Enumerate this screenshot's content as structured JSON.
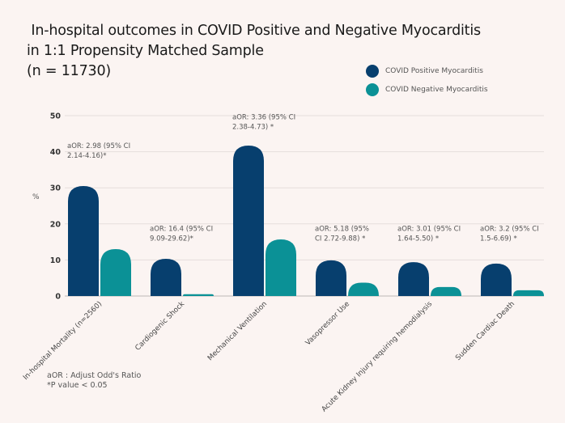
{
  "chart_data": {
    "type": "bar",
    "title": "In-hospital outcomes in COVID Positive and Negative Myocarditis in 1:1 Propensity Matched Sample (n = 11730)",
    "title_lines": [
      " In-hospital outcomes in COVID Positive and Negative Myocarditis",
      "in 1:1 Propensity Matched Sample",
      "(n = 11730)"
    ],
    "xlabel": "",
    "ylabel": "%",
    "ylim": [
      0,
      50
    ],
    "yticks": [
      0,
      10,
      20,
      30,
      40,
      50
    ],
    "grid": true,
    "legend_position": "top-right",
    "categories": [
      "In-hospital Mortality (n=2560)",
      "Cardiogenic Shock",
      "Mechanical Ventilation",
      "Vasopressor Use",
      "Acute Kidney Injury requiring hemodialysis",
      "Sudden Cardiac Death"
    ],
    "series": [
      {
        "name": "COVID Positive Myocarditis",
        "color": "#073f6e",
        "values": [
          30.5,
          10.3,
          41.7,
          9.9,
          9.4,
          9.0
        ]
      },
      {
        "name": "COVID Negative Myocarditis",
        "color": "#0b9196",
        "values": [
          13.0,
          0.5,
          15.7,
          3.7,
          2.5,
          1.6
        ]
      }
    ],
    "annotations": [
      [
        "aOR: 2.98 (95% CI",
        "2.14-4.16)*"
      ],
      [
        "aOR: 16.4 (95% CI",
        "9.09-29.62)*"
      ],
      [
        "aOR: 3.36 (95% CI",
        "2.38-4.73) *"
      ],
      [
        "aOR: 5.18 (95%",
        "CI 2.72-9.88) *"
      ],
      [
        "aOR: 3.01 (95% CI",
        "1.64-5.50) *"
      ],
      [
        "aOR: 3.2 (95% CI",
        "1.5-6.69) *"
      ]
    ],
    "annotation_anchor_values": [
      41,
      18,
      49,
      18,
      18,
      18
    ],
    "footnotes": [
      "aOR : Adjust Odd's Ratio",
      "*P value < 0.05"
    ]
  }
}
